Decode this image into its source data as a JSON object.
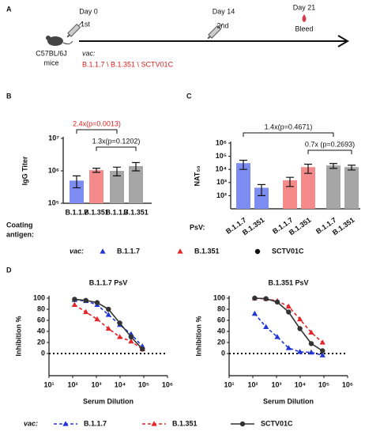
{
  "panel_labels": [
    "A",
    "B",
    "C",
    "D"
  ],
  "timeline": {
    "days": [
      {
        "day": "Day 0",
        "event": "1st"
      },
      {
        "day": "Day 14",
        "event": "2nd"
      },
      {
        "day": "Day 21",
        "event": "Bleed"
      }
    ],
    "mouse": [
      "C57BL/6J",
      "mice"
    ],
    "vac_label": "vac:",
    "vac_strains": "B.1.1.7 \\ B.1.351 \\ SCTV01C"
  },
  "chart_data": [
    {
      "type": "bar",
      "ylabel": "IgG Titer",
      "category_caption": [
        "Coating",
        "antigen:"
      ],
      "categories": [
        "B.1.1.7",
        "B.1.351",
        "B.1.1.7",
        "B.1.351"
      ],
      "values": [
        500000,
        1050000,
        1000000,
        1400000
      ],
      "errors": [
        200000,
        150000,
        300000,
        400000
      ],
      "colors": [
        "#7d8cf0",
        "#f48a8a",
        "#a6a6a6",
        "#a6a6a6"
      ],
      "log_y": true,
      "ylim": [
        100000,
        10000000
      ],
      "yticks": [
        {
          "value": 100000,
          "label": "10⁵"
        },
        {
          "value": 1000000,
          "label": "10⁶"
        },
        {
          "value": 10000000,
          "label": "10⁷"
        }
      ],
      "annotations": [
        {
          "text": "2.4x(p=0.0013)",
          "color": "#e02020"
        },
        {
          "text": "1.3x(p=0.1202)",
          "color": "#111111"
        }
      ]
    },
    {
      "type": "bar",
      "ylabel": "NAT₅₀",
      "category_caption": [
        "PsV:"
      ],
      "categories": [
        "B.1.1.7",
        "B.1.351",
        "B.1.1.7",
        "B.1.351",
        "B.1.1.7",
        "B.1.351"
      ],
      "values": [
        30000,
        400,
        1500,
        15000,
        20000,
        15000
      ],
      "errors": [
        20000,
        300,
        1000,
        10000,
        8000,
        6000
      ],
      "colors": [
        "#7d8cf0",
        "#7d8cf0",
        "#f48a8a",
        "#f48a8a",
        "#a6a6a6",
        "#a6a6a6"
      ],
      "log_y": true,
      "ylim": [
        10,
        1000000
      ],
      "yticks": [
        {
          "value": 100,
          "label": "10²"
        },
        {
          "value": 1000,
          "label": "10³"
        },
        {
          "value": 10000,
          "label": "10⁴"
        },
        {
          "value": 100000,
          "label": "10⁵"
        },
        {
          "value": 1000000,
          "label": "10⁶"
        }
      ],
      "annotations": [
        {
          "text": "1.4x(p=0.4671)",
          "color": "#111111"
        },
        {
          "text": "0.7x (p=0.2693)",
          "color": "#111111"
        }
      ]
    },
    {
      "type": "line",
      "title": "B.1.1.7 PsV",
      "xlabel": "Serum Dilution",
      "ylabel": "Inhibition %",
      "log_x": true,
      "x": [
        120,
        360,
        1080,
        3240,
        9720,
        29160,
        87480
      ],
      "series": [
        {
          "name": "B.1.1.7",
          "color": "#1f35d6",
          "line_style": "dashed",
          "marker": "triangle",
          "values": [
            97,
            95,
            88,
            70,
            52,
            35,
            13
          ]
        },
        {
          "name": "B.1.351",
          "color": "#e3262a",
          "line_style": "dashed",
          "marker": "triangle",
          "values": [
            88,
            75,
            62,
            45,
            30,
            22,
            8
          ]
        },
        {
          "name": "SCTV01C",
          "color": "#333333",
          "line_style": "solid",
          "marker": "circle",
          "values": [
            98,
            96,
            92,
            80,
            55,
            30,
            8
          ]
        }
      ],
      "xlim": [
        10,
        1000000
      ],
      "xticks": [
        {
          "value": 10,
          "label": "10¹"
        },
        {
          "value": 100,
          "label": "10²"
        },
        {
          "value": 1000,
          "label": "10³"
        },
        {
          "value": 10000,
          "label": "10⁴"
        },
        {
          "value": 100000,
          "label": "10⁵"
        },
        {
          "value": 1000000,
          "label": "10⁶"
        }
      ],
      "ylim": [
        -40,
        100
      ],
      "yticks": [
        0,
        20,
        40,
        60,
        80,
        100
      ],
      "reference_line": 0,
      "legend_label": "vac:"
    },
    {
      "type": "line",
      "title": "B.1.351 PsV",
      "xlabel": "Serum Dilution",
      "ylabel": "Inhibition %",
      "log_x": true,
      "x": [
        120,
        360,
        1080,
        3240,
        9720,
        29160,
        87480
      ],
      "series": [
        {
          "name": "B.1.1.7",
          "color": "#1f35d6",
          "line_style": "dashed",
          "marker": "triangle",
          "values": [
            72,
            48,
            30,
            10,
            3,
            2,
            -3
          ]
        },
        {
          "name": "B.1.351",
          "color": "#e3262a",
          "line_style": "dashed",
          "marker": "triangle",
          "values": [
            100,
            99,
            95,
            85,
            62,
            38,
            20
          ]
        },
        {
          "name": "SCTV01C",
          "color": "#333333",
          "line_style": "solid",
          "marker": "circle",
          "values": [
            100,
            99,
            93,
            75,
            45,
            18,
            5
          ]
        }
      ],
      "xlim": [
        10,
        1000000
      ],
      "xticks": [
        {
          "value": 10,
          "label": "10¹"
        },
        {
          "value": 100,
          "label": "10²"
        },
        {
          "value": 1000,
          "label": "10³"
        },
        {
          "value": 10000,
          "label": "10⁴"
        },
        {
          "value": 100000,
          "label": "10⁵"
        },
        {
          "value": 1000000,
          "label": "10⁶"
        }
      ],
      "ylim": [
        -40,
        100
      ],
      "yticks": [
        0,
        20,
        40,
        60,
        80,
        100
      ],
      "reference_line": 0
    }
  ],
  "vac_legend": {
    "label": "vac:",
    "items": [
      {
        "name": "B.1.1.7",
        "color": "#1f35d6",
        "marker": "triangle"
      },
      {
        "name": "B.1.351",
        "color": "#e3262a",
        "marker": "triangle"
      },
      {
        "name": "SCTV01C",
        "color": "#111111",
        "marker": "circle"
      }
    ]
  }
}
